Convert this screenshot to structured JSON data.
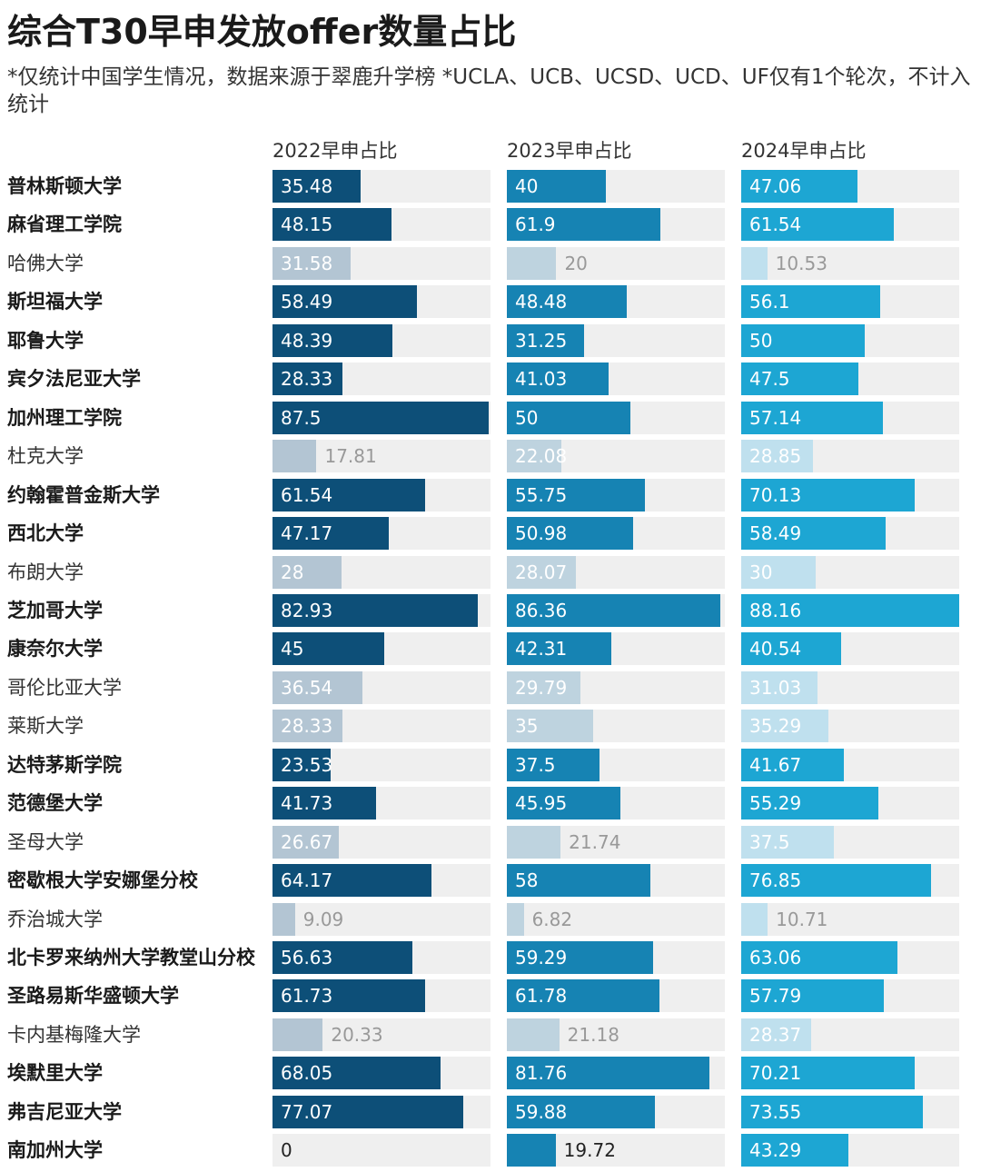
{
  "title": "综合T30早申发放offer数量占比",
  "subtitle": "*仅统计中国学生情况，数据来源于翠鹿升学榜 *UCLA、UCB、UCSD、UCD、UF仅有1个轮次，不计入统计",
  "colors": {
    "c2022_bold": "#0d4f78",
    "c2023_bold": "#1683b3",
    "c2024_bold": "#1da6d3",
    "c2022_light": "#b3c5d3",
    "c2023_light": "#bed3df",
    "c2024_light": "#bfe0ee",
    "track": "#efefef"
  },
  "chart_data": {
    "type": "bar",
    "orientation": "horizontal",
    "xlim": [
      0,
      100
    ],
    "series": [
      {
        "name": "2022早申占比",
        "values": [
          35.48,
          48.15,
          31.58,
          58.49,
          48.39,
          28.33,
          87.5,
          17.81,
          61.54,
          47.17,
          28,
          82.93,
          45,
          36.54,
          28.33,
          23.53,
          41.73,
          26.67,
          64.17,
          9.09,
          56.63,
          61.73,
          20.33,
          68.05,
          77.07,
          0
        ]
      },
      {
        "name": "2023早申占比",
        "values": [
          40,
          61.9,
          20,
          48.48,
          31.25,
          41.03,
          50,
          22.08,
          55.75,
          50.98,
          28.07,
          86.36,
          42.31,
          29.79,
          35,
          37.5,
          45.95,
          21.74,
          58,
          6.82,
          59.29,
          61.78,
          21.18,
          81.76,
          59.88,
          19.72
        ]
      },
      {
        "name": "2024早申占比",
        "values": [
          47.06,
          61.54,
          10.53,
          56.1,
          50,
          47.5,
          57.14,
          28.85,
          70.13,
          58.49,
          30,
          88.16,
          40.54,
          31.03,
          35.29,
          41.67,
          55.29,
          37.5,
          76.85,
          10.71,
          63.06,
          57.79,
          28.37,
          70.21,
          73.55,
          43.29
        ]
      }
    ],
    "categories": [
      "普林斯顿大学",
      "麻省理工学院",
      "哈佛大学",
      "斯坦福大学",
      "耶鲁大学",
      "宾夕法尼亚大学",
      "加州理工学院",
      "杜克大学",
      "约翰霍普金斯大学",
      "西北大学",
      "布朗大学",
      "芝加哥大学",
      "康奈尔大学",
      "哥伦比亚大学",
      "莱斯大学",
      "达特茅斯学院",
      "范德堡大学",
      "圣母大学",
      "密歇根大学安娜堡分校",
      "乔治城大学",
      "北卡罗来纳州大学教堂山分校",
      "圣路易斯华盛顿大学",
      "卡内基梅隆大学",
      "埃默里大学",
      "弗吉尼亚大学",
      "南加州大学"
    ],
    "highlighted": [
      true,
      true,
      false,
      true,
      true,
      true,
      true,
      false,
      true,
      true,
      false,
      true,
      true,
      false,
      false,
      true,
      true,
      false,
      true,
      false,
      true,
      true,
      false,
      true,
      true,
      true
    ]
  }
}
